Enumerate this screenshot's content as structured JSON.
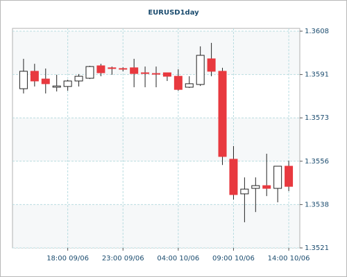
{
  "chart_data": {
    "type": "candlestick",
    "title": "EURUSD1day",
    "categories": [
      null,
      null,
      null,
      null,
      "18:00 09/06",
      null,
      null,
      null,
      null,
      "23:00 09/06",
      null,
      null,
      null,
      null,
      "04:00 10/06",
      null,
      null,
      null,
      null,
      "09:00 10/06",
      null,
      null,
      null,
      null,
      "14:00 10/06"
    ],
    "open": [
      1.35849,
      1.35919,
      1.35888,
      1.35855,
      1.35858,
      1.3588,
      1.35891,
      1.35941,
      1.35933,
      1.3593,
      1.35933,
      1.35913,
      1.3591,
      1.35913,
      1.35899,
      1.35855,
      1.35866,
      1.35969,
      1.35919,
      1.35566,
      1.35427,
      1.35449,
      1.3546,
      1.35449,
      1.35538
    ],
    "high": [
      1.35969,
      1.35949,
      1.3593,
      1.35905,
      1.35885,
      1.35908,
      1.35941,
      1.35949,
      1.35938,
      1.35935,
      1.35969,
      1.35938,
      1.35938,
      1.35913,
      1.35927,
      1.35899,
      1.36019,
      1.36033,
      1.35933,
      1.35619,
      1.35493,
      1.35493,
      1.35588,
      1.35538,
      1.3556
    ],
    "low": [
      1.3583,
      1.35858,
      1.3583,
      1.35838,
      1.35841,
      1.35858,
      1.35888,
      1.35899,
      1.35905,
      1.35919,
      1.35855,
      1.35855,
      1.35855,
      1.3588,
      1.35841,
      1.35852,
      1.3586,
      1.35899,
      1.35543,
      1.35404,
      1.35313,
      1.35354,
      1.35418,
      1.35393,
      1.35438
    ],
    "close": [
      1.35919,
      1.3588,
      1.35869,
      1.3586,
      1.3588,
      1.35899,
      1.35938,
      1.35913,
      1.3593,
      1.35928,
      1.3591,
      1.3591,
      1.35909,
      1.35899,
      1.35846,
      1.35869,
      1.35983,
      1.35919,
      1.35577,
      1.35424,
      1.35446,
      1.3546,
      1.35449,
      1.35538,
      1.35457
    ],
    "up_color": "#ffffff",
    "down_color": "#e8393f",
    "ylim": [
      1.3521,
      1.3608
    ],
    "yticks": [
      {
        "value": 1.3521,
        "label": "1.3521"
      },
      {
        "value": 1.35384,
        "label": "1.3538"
      },
      {
        "value": 1.35558,
        "label": "1.3556"
      },
      {
        "value": 1.35732,
        "label": "1.3573"
      },
      {
        "value": 1.35906,
        "label": "1.3591"
      },
      {
        "value": 1.3608,
        "label": "1.3608"
      }
    ],
    "grid": true
  }
}
